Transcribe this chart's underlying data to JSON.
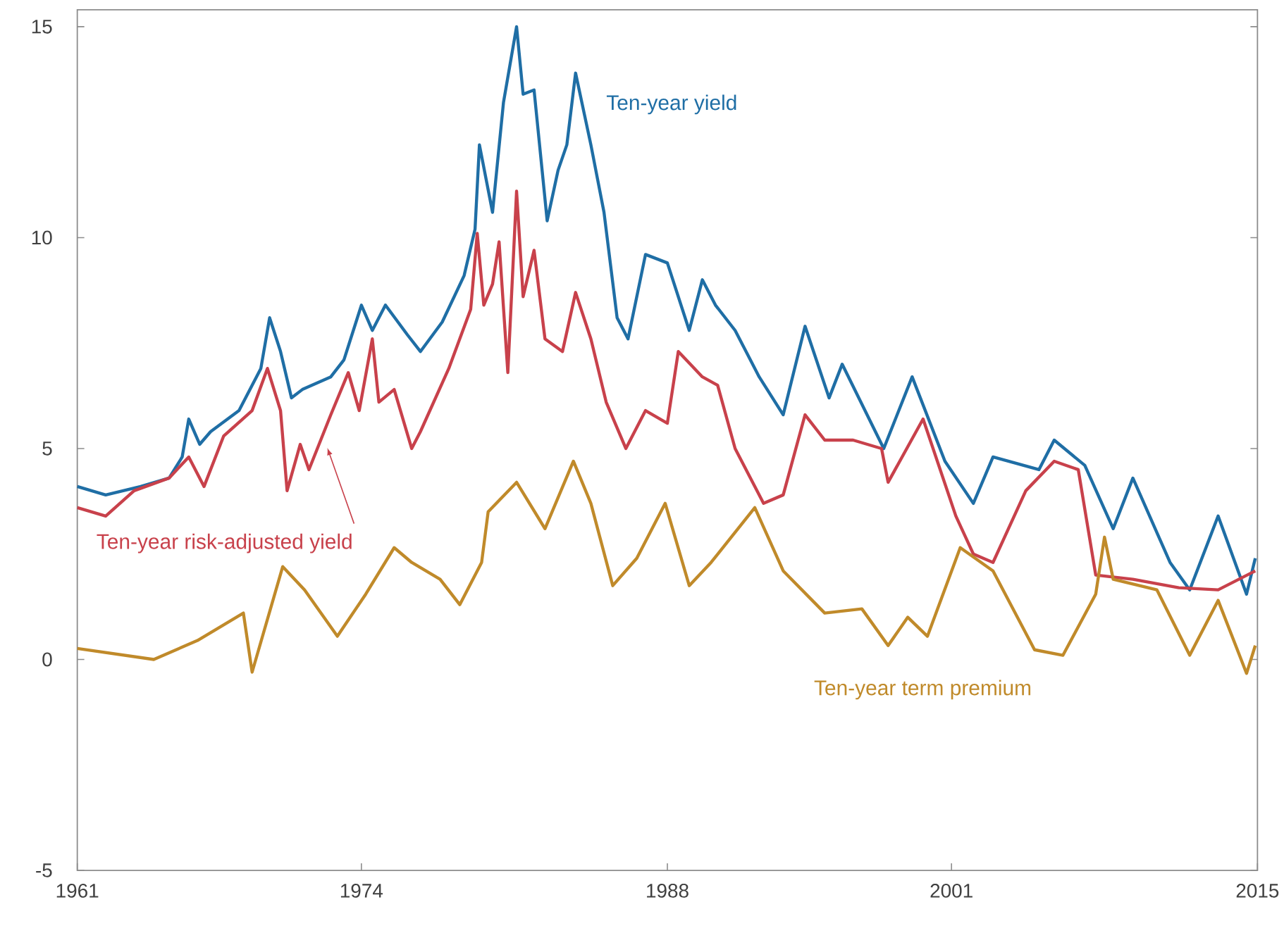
{
  "chart_data": {
    "type": "line",
    "xlim": [
      1961,
      2015
    ],
    "ylim": [
      -5,
      15.4
    ],
    "xticks": [
      1961,
      1974,
      1988,
      2001,
      2015
    ],
    "yticks": [
      -5,
      0,
      5,
      10,
      15
    ],
    "grid": false,
    "legend": false,
    "marker": "none",
    "line_style": "solid",
    "series": [
      {
        "name": "Ten-year yield",
        "color": "#1f6ea5",
        "x": [
          1961.0,
          1962.3,
          1963.9,
          1965.2,
          1965.8,
          1966.1,
          1966.6,
          1967.1,
          1968.4,
          1969.4,
          1969.8,
          1970.3,
          1970.8,
          1971.3,
          1972.6,
          1973.2,
          1974.0,
          1974.5,
          1975.1,
          1976.1,
          1976.7,
          1977.7,
          1978.7,
          1979.2,
          1979.4,
          1980.0,
          1980.5,
          1981.1,
          1981.4,
          1981.9,
          1982.5,
          1983.0,
          1983.4,
          1983.8,
          1984.5,
          1985.1,
          1985.7,
          1986.2,
          1987.0,
          1988.0,
          1988.5,
          1989.0,
          1989.6,
          1990.2,
          1991.1,
          1992.2,
          1993.3,
          1994.3,
          1995.4,
          1996.0,
          1997.9,
          1999.2,
          2000.7,
          2002.0,
          2002.9,
          2005.0,
          2005.7,
          2007.1,
          2008.4,
          2009.3,
          2011.0,
          2011.9,
          2013.2,
          2014.5,
          2014.9
        ],
        "values": [
          4.1,
          3.9,
          4.1,
          4.3,
          4.8,
          5.7,
          5.1,
          5.4,
          5.9,
          6.9,
          8.1,
          7.3,
          6.2,
          6.4,
          6.7,
          7.1,
          8.4,
          7.8,
          8.4,
          7.7,
          7.3,
          8.0,
          9.1,
          10.2,
          12.2,
          10.6,
          13.2,
          15.0,
          13.4,
          13.5,
          10.4,
          11.6,
          12.2,
          13.9,
          12.2,
          10.6,
          8.1,
          7.6,
          9.6,
          9.4,
          8.6,
          7.8,
          9.0,
          8.4,
          7.8,
          6.7,
          5.8,
          7.9,
          6.2,
          7.0,
          5.0,
          6.7,
          4.7,
          3.7,
          4.8,
          4.5,
          5.2,
          4.6,
          3.1,
          4.3,
          2.3,
          1.65,
          3.4,
          1.55,
          2.4
        ]
      },
      {
        "name": "Ten-year risk-adjusted yield",
        "color": "#c8414b",
        "x": [
          1961.0,
          1962.3,
          1963.6,
          1965.2,
          1966.1,
          1966.8,
          1967.7,
          1969.0,
          1969.7,
          1970.3,
          1970.6,
          1971.2,
          1971.6,
          1972.6,
          1973.4,
          1973.9,
          1974.5,
          1974.8,
          1975.5,
          1976.3,
          1976.7,
          1978.0,
          1979.0,
          1979.3,
          1979.6,
          1980.0,
          1980.3,
          1980.7,
          1981.1,
          1981.4,
          1981.9,
          1982.4,
          1983.2,
          1983.8,
          1984.5,
          1985.2,
          1986.1,
          1987.0,
          1988.0,
          1988.5,
          1989.6,
          1990.3,
          1991.1,
          1992.4,
          1993.3,
          1994.3,
          1995.2,
          1996.5,
          1997.8,
          1998.1,
          1999.7,
          2001.2,
          2002.0,
          2002.9,
          2004.4,
          2005.7,
          2006.8,
          2007.6,
          2009.3,
          2011.4,
          2013.2,
          2014.9
        ],
        "values": [
          3.6,
          3.4,
          4.0,
          4.3,
          4.8,
          4.1,
          5.3,
          5.9,
          6.9,
          5.9,
          4.0,
          5.1,
          4.5,
          5.8,
          6.8,
          5.9,
          7.6,
          6.1,
          6.4,
          5.0,
          5.4,
          6.9,
          8.3,
          10.1,
          8.4,
          8.9,
          9.9,
          6.8,
          11.1,
          8.6,
          9.7,
          7.6,
          7.3,
          8.7,
          7.6,
          6.1,
          5.0,
          5.9,
          5.6,
          7.3,
          6.7,
          6.5,
          5.0,
          3.7,
          3.9,
          5.8,
          5.2,
          5.2,
          5.0,
          4.2,
          5.7,
          3.4,
          2.5,
          2.3,
          4.0,
          4.7,
          4.5,
          2.0,
          1.9,
          1.7,
          1.65,
          2.1
        ]
      },
      {
        "name": "Ten-year term premium",
        "color": "#c08a2a",
        "x": [
          1961.0,
          1964.5,
          1966.5,
          1968.6,
          1969.0,
          1970.4,
          1971.4,
          1972.9,
          1974.2,
          1975.5,
          1976.3,
          1977.6,
          1978.5,
          1979.5,
          1979.8,
          1981.1,
          1982.4,
          1983.7,
          1984.5,
          1985.5,
          1986.6,
          1987.9,
          1989.0,
          1990.0,
          1992.0,
          1993.3,
          1995.2,
          1996.9,
          1998.1,
          1999.0,
          1999.9,
          2001.4,
          2002.9,
          2004.8,
          2006.1,
          2007.6,
          2008.0,
          2008.4,
          2010.4,
          2011.9,
          2013.2,
          2014.5,
          2014.9
        ],
        "values": [
          0.26,
          0.0,
          0.45,
          1.1,
          -0.3,
          2.2,
          1.65,
          0.55,
          1.55,
          2.65,
          2.3,
          1.9,
          1.3,
          2.3,
          3.5,
          4.2,
          3.1,
          4.7,
          3.7,
          1.75,
          2.4,
          3.7,
          1.75,
          2.3,
          3.6,
          2.1,
          1.1,
          1.2,
          0.33,
          1.0,
          0.55,
          2.65,
          2.1,
          0.23,
          0.1,
          1.55,
          2.9,
          1.9,
          1.65,
          0.1,
          1.4,
          -0.33,
          0.33
        ]
      }
    ]
  }
}
